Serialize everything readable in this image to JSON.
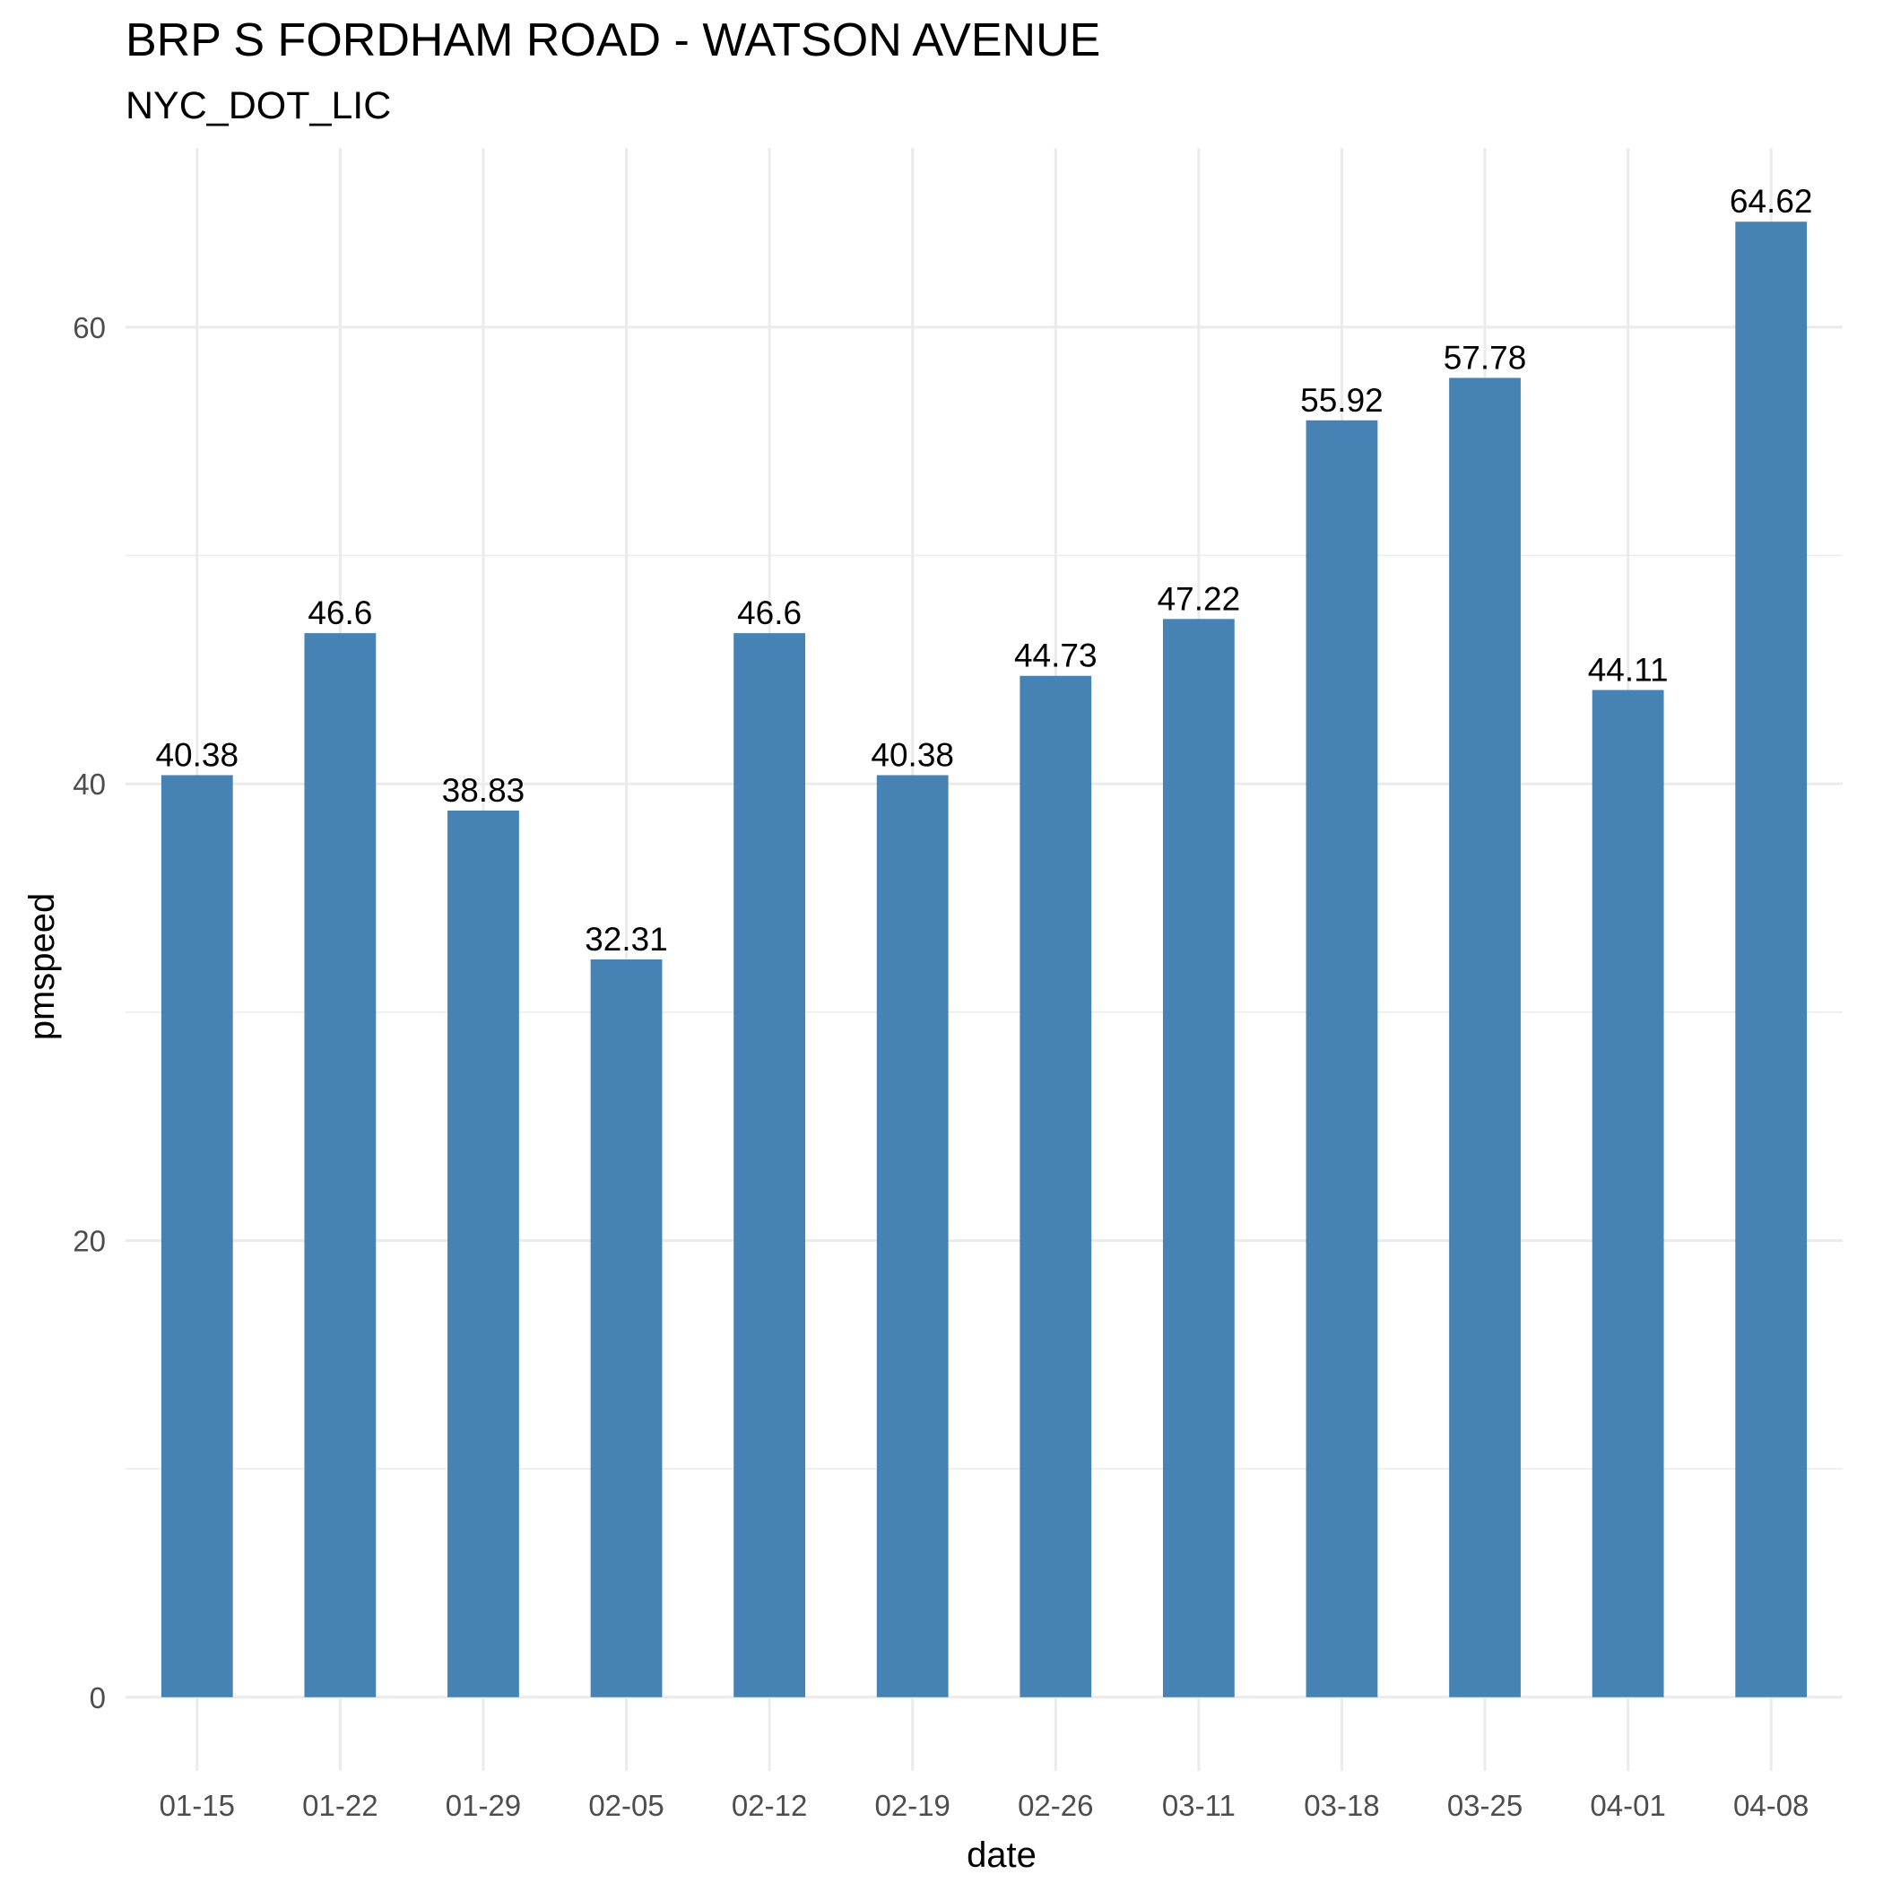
{
  "chart_data": {
    "type": "bar",
    "title": "BRP S FORDHAM ROAD - WATSON AVENUE",
    "subtitle": "NYC_DOT_LIC",
    "xlabel": "date",
    "ylabel": "pmspeed",
    "categories": [
      "01-15",
      "01-22",
      "01-29",
      "02-05",
      "02-12",
      "02-19",
      "02-26",
      "03-11",
      "03-18",
      "03-25",
      "04-01",
      "04-08"
    ],
    "values": [
      40.38,
      46.6,
      38.83,
      32.31,
      46.6,
      40.38,
      44.73,
      47.22,
      55.92,
      57.78,
      44.11,
      64.62
    ],
    "data_labels": [
      "40.38",
      "46.6",
      "38.83",
      "32.31",
      "46.6",
      "40.38",
      "44.73",
      "47.22",
      "55.92",
      "57.78",
      "44.11",
      "64.62"
    ],
    "y_ticks": [
      0,
      20,
      40,
      60
    ],
    "y_tick_labels": [
      "0",
      "20",
      "40",
      "60"
    ],
    "ylim": [
      -3.23,
      67.85
    ],
    "grid": true,
    "legend": "none",
    "bar_color": "#4682b4"
  }
}
